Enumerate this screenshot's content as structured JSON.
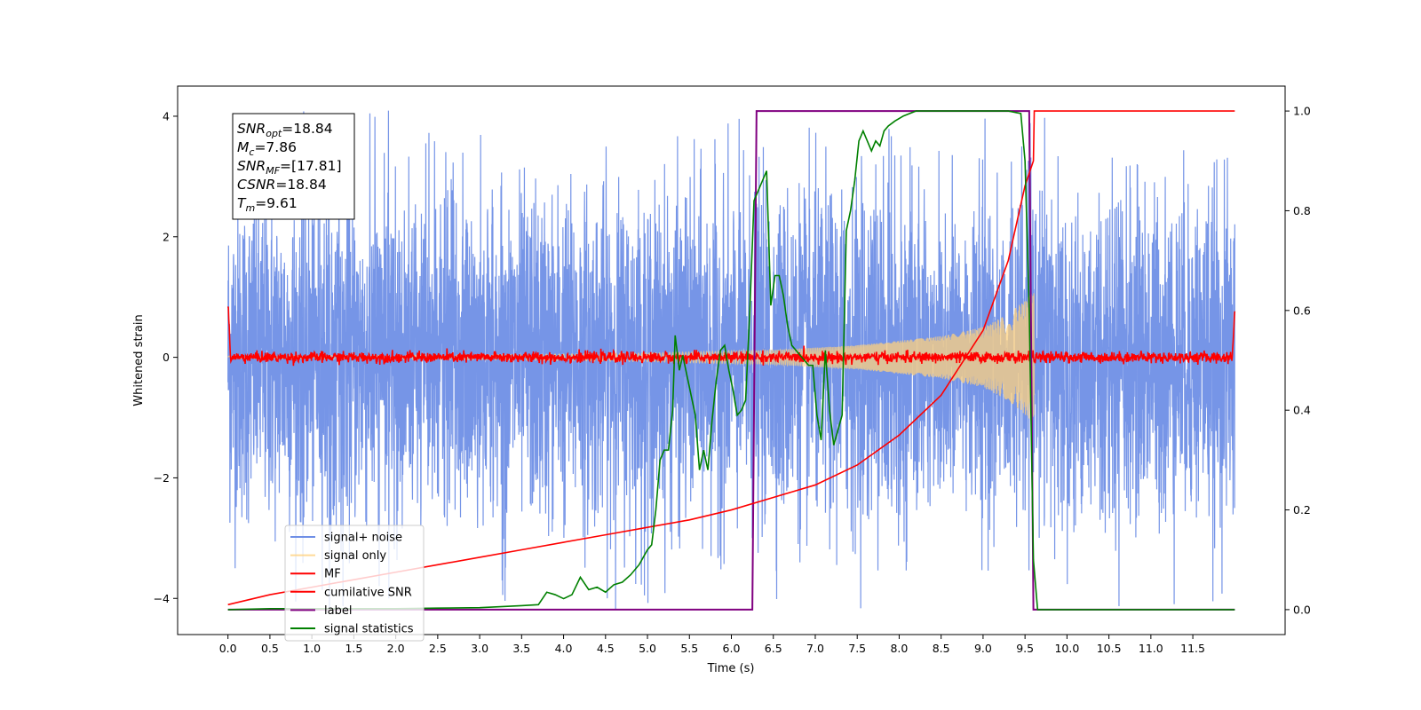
{
  "chart_data": {
    "type": "line",
    "xlabel": "Time (s)",
    "ylabel_left": "Whitened strain",
    "ylabel_right": "",
    "xlim": [
      -0.6,
      12.6
    ],
    "ylim_left": [
      -4.6,
      4.5
    ],
    "ylim_right": [
      -0.05,
      1.05
    ],
    "x_ticks": [
      0.0,
      0.5,
      1.0,
      1.5,
      2.0,
      2.5,
      3.0,
      3.5,
      4.0,
      4.5,
      5.0,
      5.5,
      6.0,
      6.5,
      7.0,
      7.5,
      8.0,
      8.5,
      9.0,
      9.5,
      10.0,
      10.5,
      11.0,
      11.5
    ],
    "x_tick_labels": [
      "0.0",
      "0.5",
      "1.0",
      "1.5",
      "2.0",
      "2.5",
      "3.0",
      "3.5",
      "4.0",
      "4.5",
      "5.0",
      "5.5",
      "6.0",
      "6.5",
      "7.0",
      "7.5",
      "8.0",
      "8.5",
      "9.0",
      "9.5",
      "10.0",
      "10.5",
      "11.0",
      "11.5"
    ],
    "y_left_ticks": [
      -4,
      -2,
      0,
      2,
      4
    ],
    "y_left_tick_labels": [
      "−4",
      "−2",
      "0",
      "2",
      "4"
    ],
    "y_right_ticks": [
      0.0,
      0.2,
      0.4,
      0.6,
      0.8,
      1.0
    ],
    "y_right_tick_labels": [
      "0.0",
      "0.2",
      "0.4",
      "0.6",
      "0.8",
      "1.0"
    ],
    "legend_position": "lower-left",
    "annotation": {
      "lines": [
        {
          "label": "SNR",
          "sub": "opt",
          "value": "=18.84"
        },
        {
          "label": "M",
          "sub": "c",
          "value": "=7.86"
        },
        {
          "label": "SNR",
          "sub": "MF",
          "value": "=[17.81]"
        },
        {
          "label": "CSNR",
          "sub": "",
          "value": "=18.84"
        },
        {
          "label": "T",
          "sub": "m",
          "value": "=9.61"
        }
      ]
    },
    "series": [
      {
        "name": "signal+ noise",
        "axis": "left",
        "color": "#6f8fe6",
        "t_range": [
          0.0,
          12.0
        ],
        "envelope": {
          "mean": 0.0,
          "typical_upper": 1.8,
          "typical_lower": -1.8,
          "max": 4.1,
          "min": -4.2
        },
        "style": "dense noise"
      },
      {
        "name": "signal only",
        "axis": "left",
        "color": "#ffd27f",
        "t_range": [
          0.0,
          9.61
        ],
        "amplitude_points": [
          [
            0.0,
            0.02
          ],
          [
            3.0,
            0.04
          ],
          [
            5.0,
            0.07
          ],
          [
            6.5,
            0.12
          ],
          [
            7.5,
            0.2
          ],
          [
            8.5,
            0.35
          ],
          [
            9.0,
            0.5
          ],
          [
            9.3,
            0.72
          ],
          [
            9.5,
            0.95
          ],
          [
            9.61,
            1.1
          ]
        ],
        "style": "chirp"
      },
      {
        "name": "MF",
        "axis": "left",
        "color": "#ff0000",
        "t_range": [
          0.0,
          12.0
        ],
        "points": [
          [
            0.0,
            1.0
          ],
          [
            0.03,
            0.1
          ],
          [
            11.97,
            0.1
          ],
          [
            12.0,
            0.9
          ]
        ],
        "noise_amplitude": 0.1,
        "style": "noisy line"
      },
      {
        "name": "cumilative SNR",
        "axis": "right",
        "color": "#ff0000",
        "points": [
          [
            0.0,
            0.01
          ],
          [
            0.5,
            0.03
          ],
          [
            1.0,
            0.045
          ],
          [
            1.5,
            0.06
          ],
          [
            2.0,
            0.075
          ],
          [
            2.5,
            0.09
          ],
          [
            3.0,
            0.105
          ],
          [
            3.5,
            0.12
          ],
          [
            4.0,
            0.135
          ],
          [
            4.5,
            0.15
          ],
          [
            5.0,
            0.165
          ],
          [
            5.5,
            0.18
          ],
          [
            6.0,
            0.2
          ],
          [
            6.5,
            0.225
          ],
          [
            7.0,
            0.25
          ],
          [
            7.5,
            0.29
          ],
          [
            8.0,
            0.35
          ],
          [
            8.5,
            0.43
          ],
          [
            9.0,
            0.56
          ],
          [
            9.3,
            0.7
          ],
          [
            9.5,
            0.85
          ],
          [
            9.6,
            0.9
          ],
          [
            9.61,
            1.0
          ],
          [
            12.0,
            1.0
          ]
        ]
      },
      {
        "name": "label",
        "axis": "right",
        "color": "#800080",
        "points": [
          [
            0.0,
            0.0
          ],
          [
            6.25,
            0.0
          ],
          [
            6.3,
            1.0
          ],
          [
            9.55,
            1.0
          ],
          [
            9.6,
            0.0
          ],
          [
            12.0,
            0.0
          ]
        ]
      },
      {
        "name": "signal statistics",
        "axis": "right",
        "color": "#008000",
        "points": [
          [
            0.0,
            0.0
          ],
          [
            0.5,
            0.002
          ],
          [
            1.0,
            0.002
          ],
          [
            1.5,
            0.002
          ],
          [
            2.0,
            0.002
          ],
          [
            2.5,
            0.003
          ],
          [
            3.0,
            0.004
          ],
          [
            3.5,
            0.008
          ],
          [
            3.7,
            0.01
          ],
          [
            3.8,
            0.035
          ],
          [
            3.9,
            0.03
          ],
          [
            4.0,
            0.022
          ],
          [
            4.1,
            0.03
          ],
          [
            4.2,
            0.065
          ],
          [
            4.3,
            0.04
          ],
          [
            4.4,
            0.045
          ],
          [
            4.5,
            0.035
          ],
          [
            4.6,
            0.05
          ],
          [
            4.7,
            0.055
          ],
          [
            4.8,
            0.07
          ],
          [
            4.9,
            0.09
          ],
          [
            5.0,
            0.12
          ],
          [
            5.05,
            0.13
          ],
          [
            5.1,
            0.2
          ],
          [
            5.15,
            0.3
          ],
          [
            5.2,
            0.32
          ],
          [
            5.25,
            0.32
          ],
          [
            5.3,
            0.4
          ],
          [
            5.33,
            0.55
          ],
          [
            5.38,
            0.48
          ],
          [
            5.42,
            0.51
          ],
          [
            5.47,
            0.47
          ],
          [
            5.52,
            0.43
          ],
          [
            5.57,
            0.39
          ],
          [
            5.62,
            0.28
          ],
          [
            5.67,
            0.32
          ],
          [
            5.72,
            0.28
          ],
          [
            5.77,
            0.38
          ],
          [
            5.82,
            0.46
          ],
          [
            5.87,
            0.52
          ],
          [
            5.92,
            0.53
          ],
          [
            5.97,
            0.48
          ],
          [
            6.02,
            0.44
          ],
          [
            6.07,
            0.39
          ],
          [
            6.12,
            0.4
          ],
          [
            6.17,
            0.42
          ],
          [
            6.22,
            0.6
          ],
          [
            6.27,
            0.82
          ],
          [
            6.32,
            0.84
          ],
          [
            6.37,
            0.86
          ],
          [
            6.42,
            0.88
          ],
          [
            6.47,
            0.61
          ],
          [
            6.52,
            0.67
          ],
          [
            6.57,
            0.67
          ],
          [
            6.62,
            0.63
          ],
          [
            6.67,
            0.57
          ],
          [
            6.72,
            0.53
          ],
          [
            6.77,
            0.52
          ],
          [
            6.82,
            0.51
          ],
          [
            6.87,
            0.5
          ],
          [
            6.92,
            0.49
          ],
          [
            6.97,
            0.49
          ],
          [
            7.02,
            0.39
          ],
          [
            7.07,
            0.34
          ],
          [
            7.12,
            0.52
          ],
          [
            7.17,
            0.4
          ],
          [
            7.22,
            0.33
          ],
          [
            7.27,
            0.36
          ],
          [
            7.32,
            0.39
          ],
          [
            7.37,
            0.76
          ],
          [
            7.42,
            0.8
          ],
          [
            7.47,
            0.86
          ],
          [
            7.52,
            0.94
          ],
          [
            7.57,
            0.96
          ],
          [
            7.62,
            0.94
          ],
          [
            7.67,
            0.92
          ],
          [
            7.72,
            0.94
          ],
          [
            7.77,
            0.93
          ],
          [
            7.82,
            0.96
          ],
          [
            7.87,
            0.97
          ],
          [
            7.95,
            0.98
          ],
          [
            8.05,
            0.99
          ],
          [
            8.2,
            1.0
          ],
          [
            8.5,
            1.0
          ],
          [
            9.0,
            1.0
          ],
          [
            9.3,
            1.0
          ],
          [
            9.45,
            0.995
          ],
          [
            9.5,
            0.9
          ],
          [
            9.55,
            0.6
          ],
          [
            9.6,
            0.1
          ],
          [
            9.65,
            0.0
          ],
          [
            12.0,
            0.0
          ]
        ]
      }
    ]
  }
}
